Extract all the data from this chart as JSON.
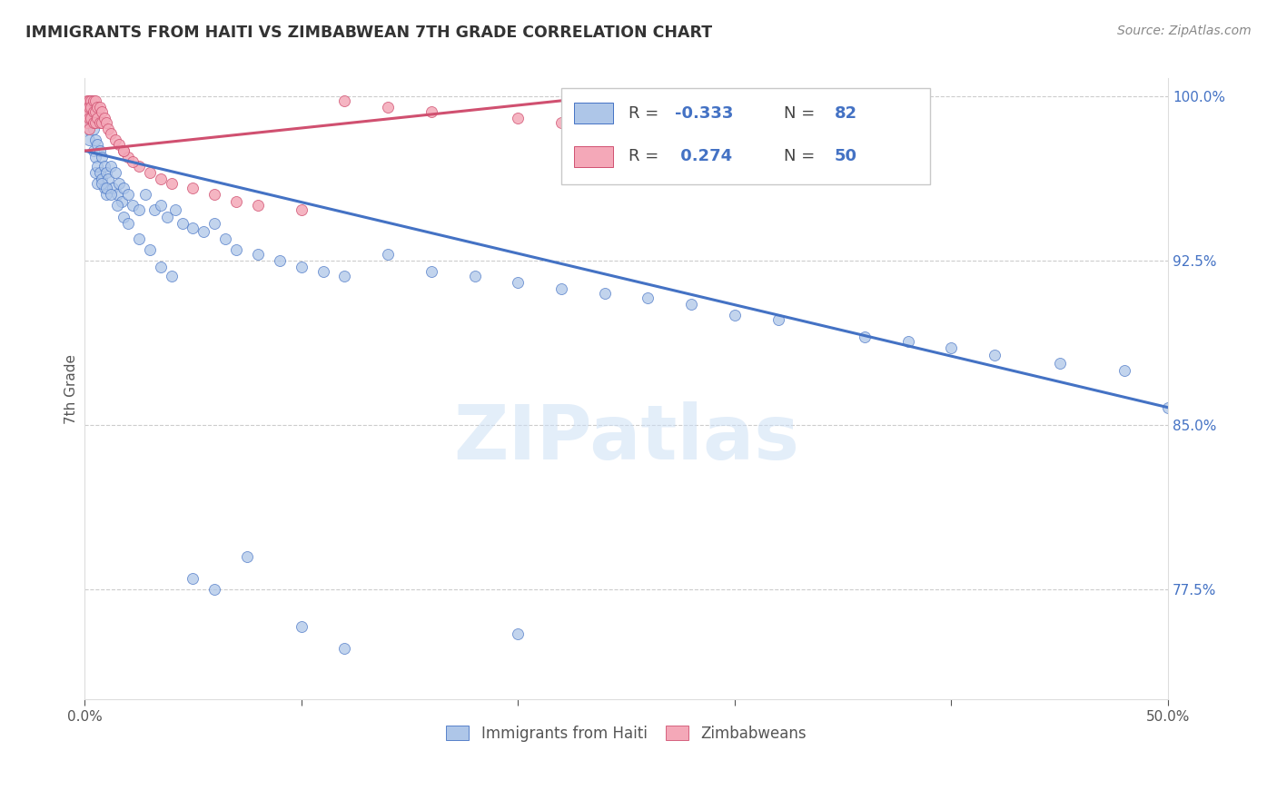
{
  "title": "IMMIGRANTS FROM HAITI VS ZIMBABWEAN 7TH GRADE CORRELATION CHART",
  "source": "Source: ZipAtlas.com",
  "ylabel": "7th Grade",
  "xlim": [
    0.0,
    0.5
  ],
  "ylim": [
    0.725,
    1.008
  ],
  "yticks": [
    0.775,
    0.85,
    0.925,
    1.0
  ],
  "ytick_labels": [
    "77.5%",
    "85.0%",
    "92.5%",
    "100.0%"
  ],
  "xticks": [
    0.0,
    0.1,
    0.2,
    0.3,
    0.4,
    0.5
  ],
  "xtick_labels": [
    "0.0%",
    "",
    "",
    "",
    "",
    "50.0%"
  ],
  "legend_r_haiti": "-0.333",
  "legend_n_haiti": "82",
  "legend_r_zimbabwe": "0.274",
  "legend_n_zimbabwe": "50",
  "haiti_color": "#aec6e8",
  "zimbabwe_color": "#f4a8b8",
  "haiti_line_color": "#4472c4",
  "zimbabwe_line_color": "#d05070",
  "watermark": "ZIPatlas",
  "haiti_x": [
    0.001,
    0.002,
    0.002,
    0.003,
    0.003,
    0.003,
    0.004,
    0.004,
    0.005,
    0.005,
    0.005,
    0.006,
    0.006,
    0.006,
    0.007,
    0.007,
    0.008,
    0.008,
    0.009,
    0.009,
    0.01,
    0.01,
    0.011,
    0.012,
    0.013,
    0.014,
    0.015,
    0.016,
    0.017,
    0.018,
    0.02,
    0.022,
    0.025,
    0.028,
    0.032,
    0.035,
    0.038,
    0.042,
    0.045,
    0.05,
    0.055,
    0.06,
    0.065,
    0.07,
    0.08,
    0.09,
    0.1,
    0.11,
    0.12,
    0.14,
    0.16,
    0.18,
    0.2,
    0.22,
    0.24,
    0.26,
    0.28,
    0.3,
    0.32,
    0.36,
    0.38,
    0.4,
    0.42,
    0.45,
    0.48,
    0.5,
    0.008,
    0.01,
    0.012,
    0.015,
    0.018,
    0.02,
    0.025,
    0.03,
    0.035,
    0.04,
    0.05,
    0.06,
    0.075,
    0.1,
    0.12,
    0.2
  ],
  "haiti_y": [
    0.985,
    0.99,
    0.98,
    0.998,
    0.995,
    0.988,
    0.985,
    0.975,
    0.98,
    0.972,
    0.965,
    0.978,
    0.968,
    0.96,
    0.975,
    0.965,
    0.972,
    0.962,
    0.968,
    0.958,
    0.965,
    0.955,
    0.962,
    0.968,
    0.958,
    0.965,
    0.955,
    0.96,
    0.952,
    0.958,
    0.955,
    0.95,
    0.948,
    0.955,
    0.948,
    0.95,
    0.945,
    0.948,
    0.942,
    0.94,
    0.938,
    0.942,
    0.935,
    0.93,
    0.928,
    0.925,
    0.922,
    0.92,
    0.918,
    0.928,
    0.92,
    0.918,
    0.915,
    0.912,
    0.91,
    0.908,
    0.905,
    0.9,
    0.898,
    0.89,
    0.888,
    0.885,
    0.882,
    0.878,
    0.875,
    0.858,
    0.96,
    0.958,
    0.955,
    0.95,
    0.945,
    0.942,
    0.935,
    0.93,
    0.922,
    0.918,
    0.78,
    0.775,
    0.79,
    0.758,
    0.748,
    0.755
  ],
  "zimbabwe_x": [
    0.001,
    0.001,
    0.001,
    0.001,
    0.002,
    0.002,
    0.002,
    0.002,
    0.003,
    0.003,
    0.003,
    0.004,
    0.004,
    0.004,
    0.005,
    0.005,
    0.005,
    0.006,
    0.006,
    0.007,
    0.007,
    0.008,
    0.008,
    0.009,
    0.01,
    0.011,
    0.012,
    0.014,
    0.016,
    0.018,
    0.02,
    0.025,
    0.03,
    0.035,
    0.04,
    0.05,
    0.06,
    0.07,
    0.08,
    0.1,
    0.12,
    0.14,
    0.16,
    0.2,
    0.22,
    0.24,
    0.26,
    0.28,
    0.018,
    0.022
  ],
  "zimbabwe_y": [
    0.998,
    0.995,
    0.992,
    0.988,
    0.998,
    0.995,
    0.99,
    0.985,
    0.998,
    0.995,
    0.99,
    0.998,
    0.993,
    0.988,
    0.998,
    0.993,
    0.988,
    0.995,
    0.99,
    0.995,
    0.988,
    0.993,
    0.988,
    0.99,
    0.988,
    0.985,
    0.983,
    0.98,
    0.978,
    0.975,
    0.972,
    0.968,
    0.965,
    0.962,
    0.96,
    0.958,
    0.955,
    0.952,
    0.95,
    0.948,
    0.998,
    0.995,
    0.993,
    0.99,
    0.988,
    0.985,
    0.982,
    0.98,
    0.975,
    0.97
  ],
  "haiti_line_x": [
    0.0,
    0.5
  ],
  "haiti_line_y": [
    0.975,
    0.858
  ],
  "zimbabwe_line_x": [
    0.0,
    0.26
  ],
  "zimbabwe_line_y": [
    0.975,
    1.002
  ]
}
